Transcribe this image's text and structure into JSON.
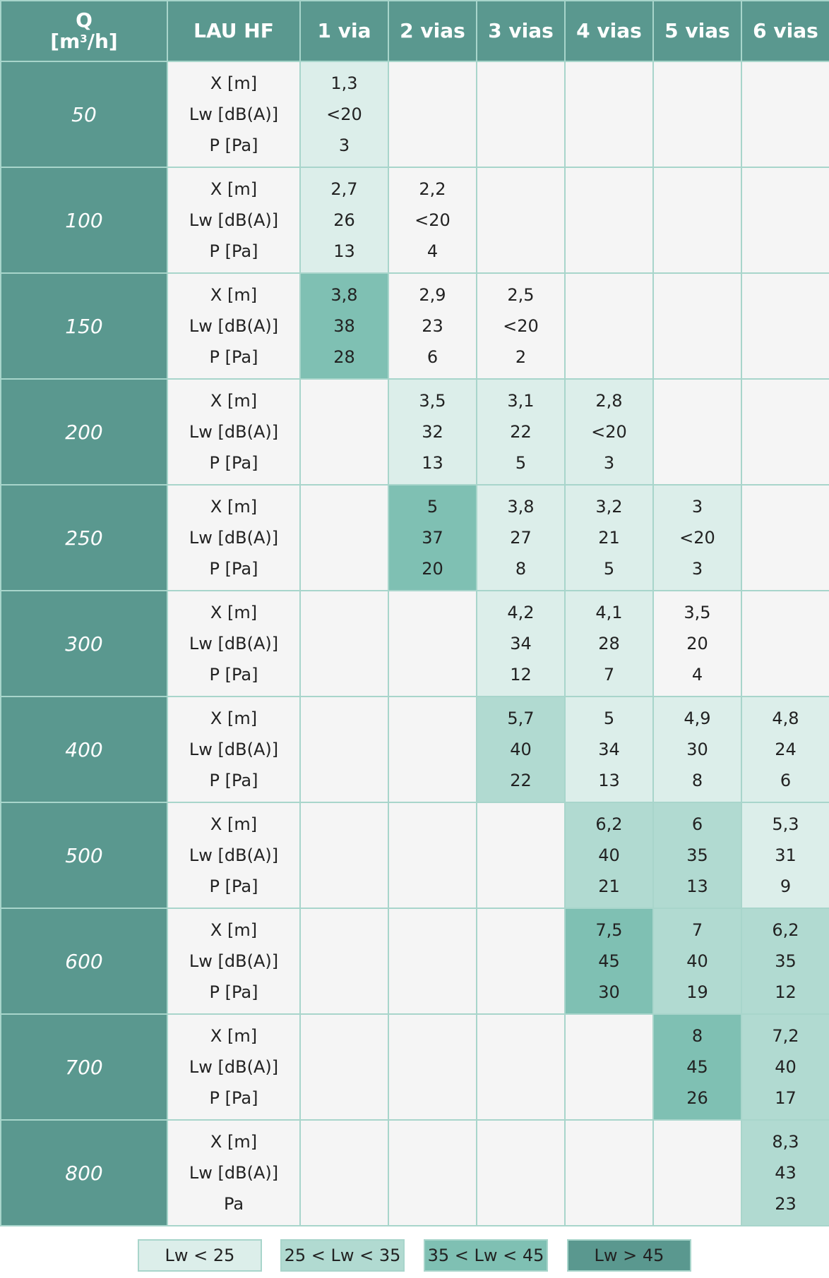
{
  "header": {
    "q_label": "Q",
    "q_unit_prefix": "[m",
    "q_unit_sup": "3",
    "q_unit_suffix": "/h]",
    "model": "LAU HF",
    "columns": [
      "1 via",
      "2 vias",
      "3 vias",
      "4 vias",
      "5 vias",
      "6 vias"
    ]
  },
  "row_labels": [
    "X [m]",
    "Lw [dB(A)]",
    "P [Pa]"
  ],
  "last_row_labels": [
    "X [m]",
    "Lw [dB(A)]",
    "Pa"
  ],
  "colors": {
    "header_bg": "#5a988f",
    "lw_lt_25": "#dceeea",
    "lw_25_35": "#b1dad1",
    "lw_35_45": "#7fc0b3",
    "lw_gt_45": "#5a988f",
    "empty": "#f5f5f5",
    "border": "#a8d5cb"
  },
  "rows": [
    {
      "q": "50",
      "cells": [
        {
          "x": "1,3",
          "lw": "<20",
          "p": "3",
          "level": 1
        },
        null,
        null,
        null,
        null,
        null
      ]
    },
    {
      "q": "100",
      "cells": [
        {
          "x": "2,7",
          "lw": "26",
          "p": "13",
          "level": 1
        },
        {
          "x": "2,2",
          "lw": "<20",
          "p": "4",
          "level": 0
        },
        null,
        null,
        null,
        null
      ]
    },
    {
      "q": "150",
      "cells": [
        {
          "x": "3,8",
          "lw": "38",
          "p": "28",
          "level": 3
        },
        {
          "x": "2,9",
          "lw": "23",
          "p": "6",
          "level": 0
        },
        {
          "x": "2,5",
          "lw": "<20",
          "p": "2",
          "level": 0
        },
        null,
        null,
        null
      ]
    },
    {
      "q": "200",
      "cells": [
        null,
        {
          "x": "3,5",
          "lw": "32",
          "p": "13",
          "level": 1
        },
        {
          "x": "3,1",
          "lw": "22",
          "p": "5",
          "level": 1
        },
        {
          "x": "2,8",
          "lw": "<20",
          "p": "3",
          "level": 1
        },
        null,
        null
      ]
    },
    {
      "q": "250",
      "cells": [
        null,
        {
          "x": "5",
          "lw": "37",
          "p": "20",
          "level": 3
        },
        {
          "x": "3,8",
          "lw": "27",
          "p": "8",
          "level": 1
        },
        {
          "x": "3,2",
          "lw": "21",
          "p": "5",
          "level": 1
        },
        {
          "x": "3",
          "lw": "<20",
          "p": "3",
          "level": 1
        },
        null
      ]
    },
    {
      "q": "300",
      "cells": [
        null,
        null,
        {
          "x": "4,2",
          "lw": "34",
          "p": "12",
          "level": 1
        },
        {
          "x": "4,1",
          "lw": "28",
          "p": "7",
          "level": 1
        },
        {
          "x": "3,5",
          "lw": "20",
          "p": "4",
          "level": 0
        },
        null
      ]
    },
    {
      "q": "400",
      "cells": [
        null,
        null,
        {
          "x": "5,7",
          "lw": "40",
          "p": "22",
          "level": 2
        },
        {
          "x": "5",
          "lw": "34",
          "p": "13",
          "level": 1
        },
        {
          "x": "4,9",
          "lw": "30",
          "p": "8",
          "level": 1
        },
        {
          "x": "4,8",
          "lw": "24",
          "p": "6",
          "level": 1
        }
      ]
    },
    {
      "q": "500",
      "cells": [
        null,
        null,
        null,
        {
          "x": "6,2",
          "lw": "40",
          "p": "21",
          "level": 2
        },
        {
          "x": "6",
          "lw": "35",
          "p": "13",
          "level": 2
        },
        {
          "x": "5,3",
          "lw": "31",
          "p": "9",
          "level": 1
        }
      ]
    },
    {
      "q": "600",
      "cells": [
        null,
        null,
        null,
        {
          "x": "7,5",
          "lw": "45",
          "p": "30",
          "level": 3
        },
        {
          "x": "7",
          "lw": "40",
          "p": "19",
          "level": 2
        },
        {
          "x": "6,2",
          "lw": "35",
          "p": "12",
          "level": 2
        }
      ]
    },
    {
      "q": "700",
      "cells": [
        null,
        null,
        null,
        null,
        {
          "x": "8",
          "lw": "45",
          "p": "26",
          "level": 3
        },
        {
          "x": "7,2",
          "lw": "40",
          "p": "17",
          "level": 2
        }
      ]
    },
    {
      "q": "800",
      "cells": [
        null,
        null,
        null,
        null,
        null,
        {
          "x": "8,3",
          "lw": "43",
          "p": "23",
          "level": 2
        }
      ]
    }
  ],
  "legend": [
    {
      "label": "Lw < 25",
      "color": "#dceeea"
    },
    {
      "label": "25 < Lw < 35",
      "color": "#b1dad1"
    },
    {
      "label": "35 < Lw < 45",
      "color": "#7fc0b3"
    },
    {
      "label": "Lw > 45",
      "color": "#5a988f"
    }
  ]
}
